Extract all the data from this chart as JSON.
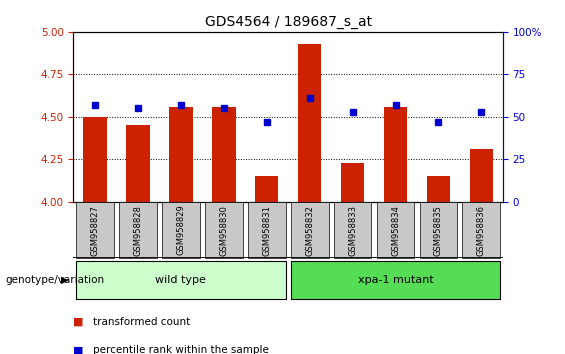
{
  "title": "GDS4564 / 189687_s_at",
  "samples": [
    "GSM958827",
    "GSM958828",
    "GSM958829",
    "GSM958830",
    "GSM958831",
    "GSM958832",
    "GSM958833",
    "GSM958834",
    "GSM958835",
    "GSM958836"
  ],
  "transformed_count": [
    4.5,
    4.45,
    4.56,
    4.56,
    4.15,
    4.93,
    4.23,
    4.56,
    4.15,
    4.31
  ],
  "percentile_rank": [
    57,
    55,
    57,
    55,
    47,
    61,
    53,
    57,
    47,
    53
  ],
  "ylim_left": [
    4.0,
    5.0
  ],
  "ylim_right": [
    0,
    100
  ],
  "yticks_left": [
    4.0,
    4.25,
    4.5,
    4.75,
    5.0
  ],
  "yticks_right": [
    0,
    25,
    50,
    75,
    100
  ],
  "bar_color": "#cc2200",
  "dot_color": "#0000cc",
  "wild_type_indices": [
    0,
    1,
    2,
    3,
    4
  ],
  "mutant_indices": [
    5,
    6,
    7,
    8,
    9
  ],
  "wild_type_label": "wild type",
  "mutant_label": "xpa-1 mutant",
  "wild_type_color": "#ccffcc",
  "mutant_color": "#55dd55",
  "genotype_label": "genotype/variation",
  "legend_bar_label": "transformed count",
  "legend_dot_label": "percentile rank within the sample",
  "bg_color": "#ffffff",
  "tick_label_area_color": "#c8c8c8",
  "bar_width": 0.55,
  "title_fontsize": 10,
  "tick_fontsize": 7.5,
  "sample_fontsize": 6
}
